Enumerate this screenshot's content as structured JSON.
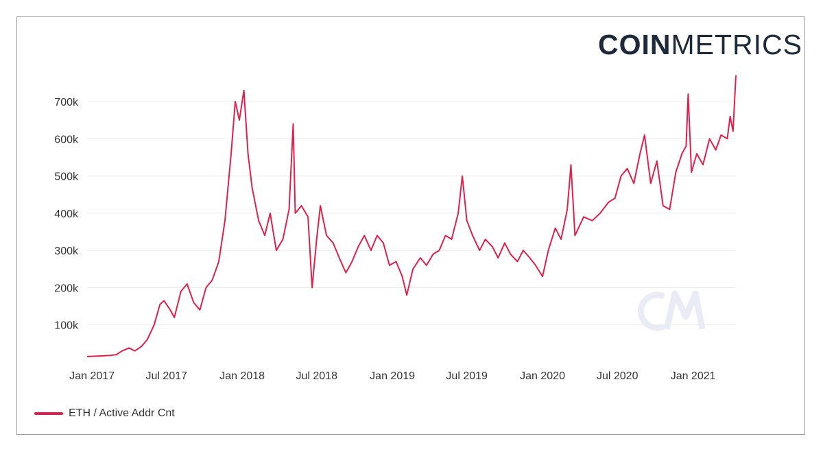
{
  "brand": {
    "bold": "COIN",
    "light": "METRICS"
  },
  "colors": {
    "series": "#e0204a",
    "grid": "#ececec",
    "axis_text": "#333333",
    "watermark": "#e9ecf4"
  },
  "watermark_icon": "cm-watermark-icon",
  "chart_data": {
    "type": "line",
    "title": "",
    "xlabel": "",
    "ylabel": "",
    "ylim": [
      0,
      770000
    ],
    "xlim": [
      "2016-12-20",
      "2021-04-15"
    ],
    "grid": true,
    "legend_position": "bottom-left",
    "y_ticks": [
      {
        "value": 100000,
        "label": "100k"
      },
      {
        "value": 200000,
        "label": "200k"
      },
      {
        "value": 300000,
        "label": "300k"
      },
      {
        "value": 400000,
        "label": "400k"
      },
      {
        "value": 500000,
        "label": "500k"
      },
      {
        "value": 600000,
        "label": "600k"
      },
      {
        "value": 700000,
        "label": "700k"
      }
    ],
    "x_ticks": [
      {
        "date": "2017-01-01",
        "label": "Jan 2017"
      },
      {
        "date": "2017-07-01",
        "label": "Jul 2017"
      },
      {
        "date": "2018-01-01",
        "label": "Jan 2018"
      },
      {
        "date": "2018-07-01",
        "label": "Jul 2018"
      },
      {
        "date": "2019-01-01",
        "label": "Jan 2019"
      },
      {
        "date": "2019-07-01",
        "label": "Jul 2019"
      },
      {
        "date": "2020-01-01",
        "label": "Jan 2020"
      },
      {
        "date": "2020-07-01",
        "label": "Jul 2020"
      },
      {
        "date": "2021-01-01",
        "label": "Jan 2021"
      }
    ],
    "series": [
      {
        "name": "ETH / Active Addr Cnt",
        "color": "#e0204a",
        "points": [
          [
            "2016-12-20",
            15000
          ],
          [
            "2017-01-15",
            16000
          ],
          [
            "2017-02-15",
            18000
          ],
          [
            "2017-03-01",
            20000
          ],
          [
            "2017-03-15",
            30000
          ],
          [
            "2017-04-01",
            38000
          ],
          [
            "2017-04-15",
            30000
          ],
          [
            "2017-05-01",
            42000
          ],
          [
            "2017-05-15",
            60000
          ],
          [
            "2017-06-01",
            100000
          ],
          [
            "2017-06-15",
            155000
          ],
          [
            "2017-06-25",
            165000
          ],
          [
            "2017-07-10",
            140000
          ],
          [
            "2017-07-20",
            120000
          ],
          [
            "2017-08-05",
            190000
          ],
          [
            "2017-08-20",
            210000
          ],
          [
            "2017-09-05",
            160000
          ],
          [
            "2017-09-20",
            140000
          ],
          [
            "2017-10-05",
            200000
          ],
          [
            "2017-10-20",
            220000
          ],
          [
            "2017-11-05",
            270000
          ],
          [
            "2017-11-20",
            380000
          ],
          [
            "2017-12-05",
            560000
          ],
          [
            "2017-12-15",
            700000
          ],
          [
            "2017-12-25",
            650000
          ],
          [
            "2018-01-05",
            730000
          ],
          [
            "2018-01-15",
            560000
          ],
          [
            "2018-01-25",
            470000
          ],
          [
            "2018-02-10",
            380000
          ],
          [
            "2018-02-25",
            340000
          ],
          [
            "2018-03-10",
            400000
          ],
          [
            "2018-03-25",
            300000
          ],
          [
            "2018-04-10",
            330000
          ],
          [
            "2018-04-25",
            410000
          ],
          [
            "2018-05-05",
            640000
          ],
          [
            "2018-05-10",
            400000
          ],
          [
            "2018-05-25",
            420000
          ],
          [
            "2018-06-10",
            390000
          ],
          [
            "2018-06-20",
            200000
          ],
          [
            "2018-07-01",
            330000
          ],
          [
            "2018-07-10",
            420000
          ],
          [
            "2018-07-25",
            340000
          ],
          [
            "2018-08-10",
            320000
          ],
          [
            "2018-08-25",
            280000
          ],
          [
            "2018-09-10",
            240000
          ],
          [
            "2018-09-25",
            270000
          ],
          [
            "2018-10-10",
            310000
          ],
          [
            "2018-10-25",
            340000
          ],
          [
            "2018-11-10",
            300000
          ],
          [
            "2018-11-25",
            340000
          ],
          [
            "2018-12-10",
            320000
          ],
          [
            "2018-12-25",
            260000
          ],
          [
            "2019-01-10",
            270000
          ],
          [
            "2019-01-25",
            230000
          ],
          [
            "2019-02-05",
            180000
          ],
          [
            "2019-02-20",
            250000
          ],
          [
            "2019-03-10",
            280000
          ],
          [
            "2019-03-25",
            260000
          ],
          [
            "2019-04-10",
            290000
          ],
          [
            "2019-04-25",
            300000
          ],
          [
            "2019-05-10",
            340000
          ],
          [
            "2019-05-25",
            330000
          ],
          [
            "2019-06-10",
            400000
          ],
          [
            "2019-06-20",
            500000
          ],
          [
            "2019-07-01",
            380000
          ],
          [
            "2019-07-15",
            340000
          ],
          [
            "2019-08-01",
            300000
          ],
          [
            "2019-08-15",
            330000
          ],
          [
            "2019-09-01",
            310000
          ],
          [
            "2019-09-15",
            280000
          ],
          [
            "2019-10-01",
            320000
          ],
          [
            "2019-10-15",
            290000
          ],
          [
            "2019-11-01",
            270000
          ],
          [
            "2019-11-15",
            300000
          ],
          [
            "2019-12-01",
            280000
          ],
          [
            "2019-12-15",
            260000
          ],
          [
            "2020-01-01",
            230000
          ],
          [
            "2020-01-15",
            300000
          ],
          [
            "2020-02-01",
            360000
          ],
          [
            "2020-02-15",
            330000
          ],
          [
            "2020-03-01",
            410000
          ],
          [
            "2020-03-10",
            530000
          ],
          [
            "2020-03-20",
            340000
          ],
          [
            "2020-04-10",
            390000
          ],
          [
            "2020-05-01",
            380000
          ],
          [
            "2020-05-20",
            400000
          ],
          [
            "2020-06-10",
            430000
          ],
          [
            "2020-06-25",
            440000
          ],
          [
            "2020-07-10",
            500000
          ],
          [
            "2020-07-25",
            520000
          ],
          [
            "2020-08-10",
            480000
          ],
          [
            "2020-08-25",
            560000
          ],
          [
            "2020-09-05",
            610000
          ],
          [
            "2020-09-20",
            480000
          ],
          [
            "2020-10-05",
            540000
          ],
          [
            "2020-10-20",
            420000
          ],
          [
            "2020-11-05",
            410000
          ],
          [
            "2020-11-20",
            510000
          ],
          [
            "2020-12-05",
            560000
          ],
          [
            "2020-12-15",
            580000
          ],
          [
            "2020-12-20",
            720000
          ],
          [
            "2020-12-28",
            510000
          ],
          [
            "2021-01-10",
            560000
          ],
          [
            "2021-01-25",
            530000
          ],
          [
            "2021-02-10",
            600000
          ],
          [
            "2021-02-25",
            570000
          ],
          [
            "2021-03-10",
            610000
          ],
          [
            "2021-03-25",
            600000
          ],
          [
            "2021-04-01",
            660000
          ],
          [
            "2021-04-08",
            620000
          ],
          [
            "2021-04-15",
            770000
          ]
        ]
      }
    ]
  },
  "legend": {
    "label": "ETH / Active Addr Cnt"
  }
}
